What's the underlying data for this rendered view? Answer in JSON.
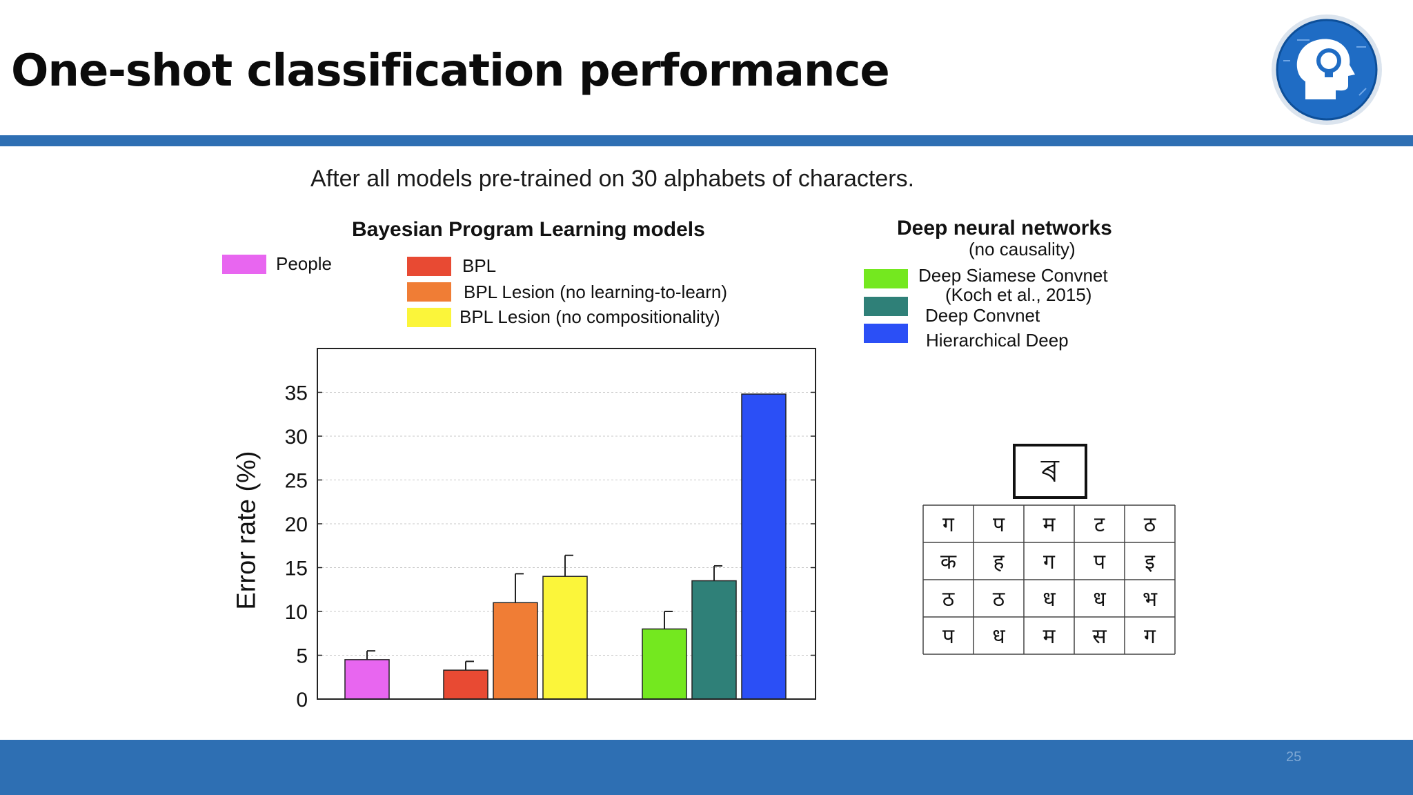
{
  "slide": {
    "title": "One-shot classification performance",
    "page_number": "25",
    "accent_color": "#2e6fb3"
  },
  "caption": "After all models pre-trained on 30 alphabets of characters.",
  "legend": {
    "bpl_heading": "Bayesian Program Learning models",
    "dnn_heading": "Deep neural networks",
    "dnn_subheading": "(no causality)",
    "people_label": "People",
    "bpl_label": "BPL",
    "bpl_lesion_l2l_label": "BPL Lesion (no learning-to-learn)",
    "bpl_lesion_comp_label": "BPL Lesion (no compositionality)",
    "siamese_label_line1": "Deep Siamese Convnet",
    "siamese_label_line2": "(Koch et al., 2015)",
    "convnet_label": "Deep Convnet",
    "hd_label": "Hierarchical Deep"
  },
  "chart_data": {
    "type": "bar",
    "title": "",
    "xlabel": "",
    "ylabel": "Error rate (%)",
    "ylim": [
      0,
      40
    ],
    "yticks": [
      0,
      5,
      10,
      15,
      20,
      25,
      30,
      35
    ],
    "grid": true,
    "series": [
      {
        "name": "People",
        "value": 4.5,
        "error": 1.0,
        "group": 0,
        "color": "#e866f0"
      },
      {
        "name": "BPL",
        "value": 3.3,
        "error": 1.0,
        "group": 1,
        "color": "#e84a33"
      },
      {
        "name": "BPL Lesion (no learning-to-learn)",
        "value": 11.0,
        "error": 3.3,
        "group": 1,
        "color": "#f07d35"
      },
      {
        "name": "BPL Lesion (no compositionality)",
        "value": 14.0,
        "error": 2.4,
        "group": 1,
        "color": "#fbf53a"
      },
      {
        "name": "Deep Siamese Convnet",
        "value": 8.0,
        "error": 2.0,
        "group": 2,
        "color": "#74e81f"
      },
      {
        "name": "Deep Convnet",
        "value": 13.5,
        "error": 1.7,
        "group": 2,
        "color": "#2f8078"
      },
      {
        "name": "Hierarchical Deep",
        "value": 34.8,
        "error": 0,
        "group": 2,
        "color": "#2b4ff6"
      }
    ]
  },
  "glyph_panel": {
    "target": "ৰ",
    "grid": [
      [
        "ग",
        "प",
        "म",
        "ट",
        "ठ"
      ],
      [
        "क",
        "ह",
        "ग",
        "प",
        "इ"
      ],
      [
        "ठ",
        "ठ",
        "ध",
        "ध",
        "भ"
      ],
      [
        "प",
        "ध",
        "म",
        "स",
        "ग"
      ]
    ]
  }
}
